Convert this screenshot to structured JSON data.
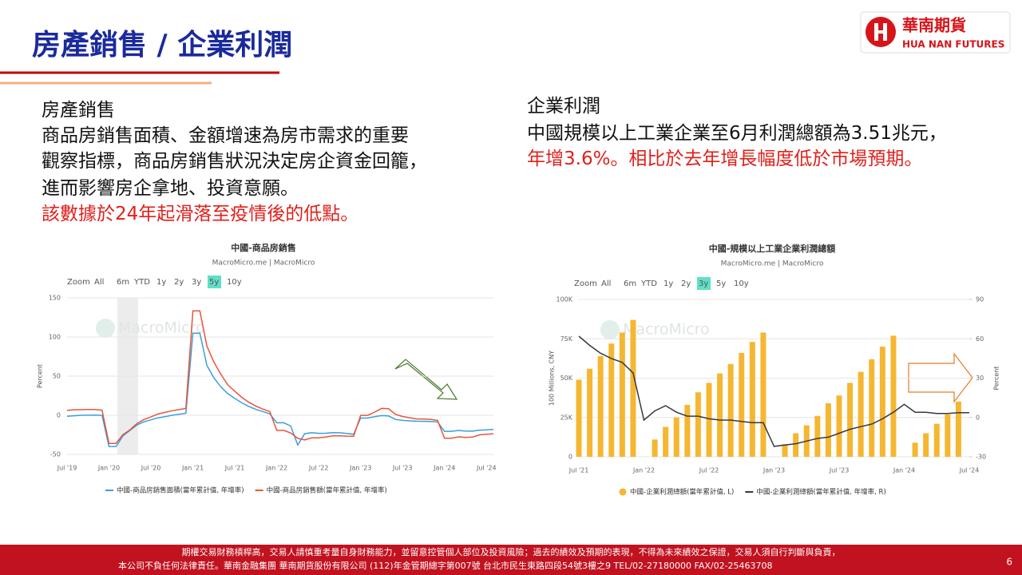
{
  "slide": {
    "title": "房產銷售 / 企業利潤",
    "logo": {
      "name": "華南期貨",
      "english": "HUA NAN FUTURES"
    },
    "left": {
      "heading": "房產銷售",
      "lines": [
        "商品房銷售面積、金額增速為房市需求的重要",
        "觀察指標，商品房銷售狀況決定房企資金回籠，",
        "進而影響房企拿地、投資意願。"
      ],
      "highlight": "該數據於24年起滑落至疫情後的低點。"
    },
    "right": {
      "heading": "企業利潤",
      "line": "中國規模以上工業企業至6月利潤總額為3.51兆元，",
      "highlight": "年增3.6%。相比於去年增長幅度低於市場預期。"
    },
    "footer": {
      "lines": [
        "期權交易財務槓桿高，交易人請慎重考量自身財務能力，並留意控管個人部位及投資風險；過去的績效及預期的表現，不得為未來績效之保證，交易人須自行判斷與負責，",
        "本公司不負任何法律責任。華南金融集團  華南期貨股份有限公司 (112)年金管期總字第007號  台北市民生東路四段54號3樓之9  TEL/02-27180000  FAX/02-25463708"
      ],
      "page": "6"
    }
  },
  "chart_data": [
    {
      "type": "line",
      "title": "中國-商品房銷售",
      "subtitle": "MacroMicro.me | MacroMicro",
      "range_buttons": [
        "Zoom",
        "All",
        "6m",
        "YTD",
        "1y",
        "2y",
        "3y",
        "5y",
        "10y"
      ],
      "range_selected": "5y",
      "watermark": "MacroMicro",
      "ylabel": "Percent",
      "categories": [
        "Jul '19",
        null,
        null,
        null,
        null,
        null,
        "Jan '20",
        null,
        null,
        null,
        null,
        null,
        "Jul '20",
        null,
        null,
        null,
        null,
        null,
        "Jan '21",
        null,
        null,
        null,
        null,
        null,
        "Jul '21",
        null,
        null,
        null,
        null,
        null,
        "Jan '22",
        null,
        null,
        null,
        null,
        null,
        "Jul '22",
        null,
        null,
        null,
        null,
        null,
        "Jan '23",
        null,
        null,
        null,
        null,
        null,
        "Jul '23",
        null,
        null,
        null,
        null,
        null,
        "Jan '24",
        null,
        null,
        null,
        null,
        null,
        "Jul '24",
        null
      ],
      "series": [
        {
          "name": "中國-商品房銷售面積(當年累計值, 年增率)",
          "color": "#3a9fdc",
          "values": [
            -1.3,
            -0.6,
            0,
            0.1,
            0.2,
            -0.1,
            -39.9,
            -39.9,
            -26.3,
            -19.3,
            -12.3,
            -8.4,
            -5.8,
            -3.3,
            -1.8,
            0,
            1.3,
            2.6,
            104.9,
            104.9,
            63.8,
            48.1,
            36.3,
            27.7,
            21.5,
            15.9,
            11.3,
            7.5,
            4.8,
            1.9,
            -9.6,
            -9.6,
            -13.8,
            -38,
            -23.6,
            -22.2,
            -23.1,
            -23,
            -22.2,
            -22.3,
            -23.3,
            -24.3,
            -3.6,
            -3.6,
            -1.8,
            -0.4,
            -0.9,
            -5.3,
            -6.5,
            -7.1,
            -7.5,
            -7.8,
            -8,
            -8.5,
            -20.5,
            -20.5,
            -19.4,
            -20.2,
            -20.3,
            -19,
            -18.6,
            -18
          ]
        },
        {
          "name": "中國-商品房銷售額(當年累計值, 年增率)",
          "color": "#e8553a",
          "values": [
            6.2,
            7.1,
            7.1,
            7.3,
            7.3,
            6.5,
            -35.9,
            -35.9,
            -24.7,
            -18.6,
            -10.6,
            -5.4,
            -2.1,
            1.6,
            3.7,
            5.8,
            7.2,
            8.7,
            133.4,
            133.4,
            88.5,
            68.2,
            52.4,
            38.9,
            30.7,
            22.9,
            16.6,
            11.8,
            8,
            4.8,
            -19.3,
            -19.3,
            -22.7,
            -29.5,
            -31.5,
            -28.9,
            -28.8,
            -27.9,
            -26.3,
            -26.1,
            -26.6,
            -26.7,
            -0.1,
            -0.1,
            4.1,
            8.8,
            8.4,
            1.1,
            -1.5,
            -3.2,
            -4.6,
            -4.9,
            -5.2,
            -6.5,
            -29.3,
            -29.3,
            -27.6,
            -28.3,
            -27.9,
            -25,
            -24.3,
            -23.6
          ]
        }
      ],
      "ylim": [
        -50,
        150
      ],
      "yticks": [
        -50,
        0,
        50,
        100,
        150
      ],
      "grid": true
    },
    {
      "type": "combo",
      "title": "中國-規模以上工業企業利潤總額",
      "subtitle": "MacroMicro.me | MacroMicro",
      "range_buttons": [
        "Zoom",
        "All",
        "6m",
        "YTD",
        "1y",
        "2y",
        "3y",
        "5y",
        "10y"
      ],
      "range_selected": "3y",
      "watermark": "MacroMicro",
      "ylabel": "100 Millions, CNY",
      "y2label": "Percent",
      "categories": [
        "Jul '21",
        null,
        null,
        null,
        null,
        null,
        "Jan '22",
        null,
        null,
        null,
        null,
        null,
        "Jul '22",
        null,
        null,
        null,
        null,
        null,
        "Jan '23",
        null,
        null,
        null,
        null,
        null,
        "Jul '23",
        null,
        null,
        null,
        null,
        null,
        "Jan '24",
        null,
        null,
        null,
        null,
        null,
        "Jul '24"
      ],
      "series": [
        {
          "name": "中國-企業利潤總額(當年累計值, L)",
          "type": "bar",
          "color": "#f5b731",
          "values": [
            49000,
            56000,
            64000,
            72000,
            79000,
            87000,
            null,
            11000,
            19000,
            25000,
            33000,
            41000,
            47000,
            53000,
            59000,
            66000,
            73000,
            79000,
            null,
            8000,
            15000,
            20000,
            26000,
            34000,
            39000,
            47000,
            54000,
            62000,
            70000,
            77000,
            null,
            9000,
            15000,
            21000,
            27000,
            35100,
            null
          ]
        },
        {
          "name": "中國-企業利潤總額(當年累計值, 年增率, R)",
          "type": "line",
          "axis": "y2",
          "color": "#333a44",
          "values": [
            62,
            55,
            49,
            45,
            42,
            34,
            -2,
            5,
            9,
            4,
            1,
            1,
            -1,
            -2,
            -2,
            -3,
            -4,
            -4,
            -22,
            -21,
            -20,
            -18,
            -16,
            -15,
            -12,
            -9,
            -7,
            -5,
            -1,
            4,
            10,
            4,
            4,
            3,
            3,
            3.6,
            3.6
          ]
        }
      ],
      "ylim": [
        0,
        100000
      ],
      "yticks": [
        0,
        {
          "value": 25000,
          "label": "25K"
        },
        {
          "value": 50000,
          "label": "50K"
        },
        {
          "value": 75000,
          "label": "75K"
        },
        {
          "value": 100000,
          "label": "100K"
        }
      ],
      "y2lim": [
        -30,
        90
      ],
      "y2ticks": [
        -30,
        0,
        30,
        60,
        90
      ],
      "grid": true
    }
  ]
}
